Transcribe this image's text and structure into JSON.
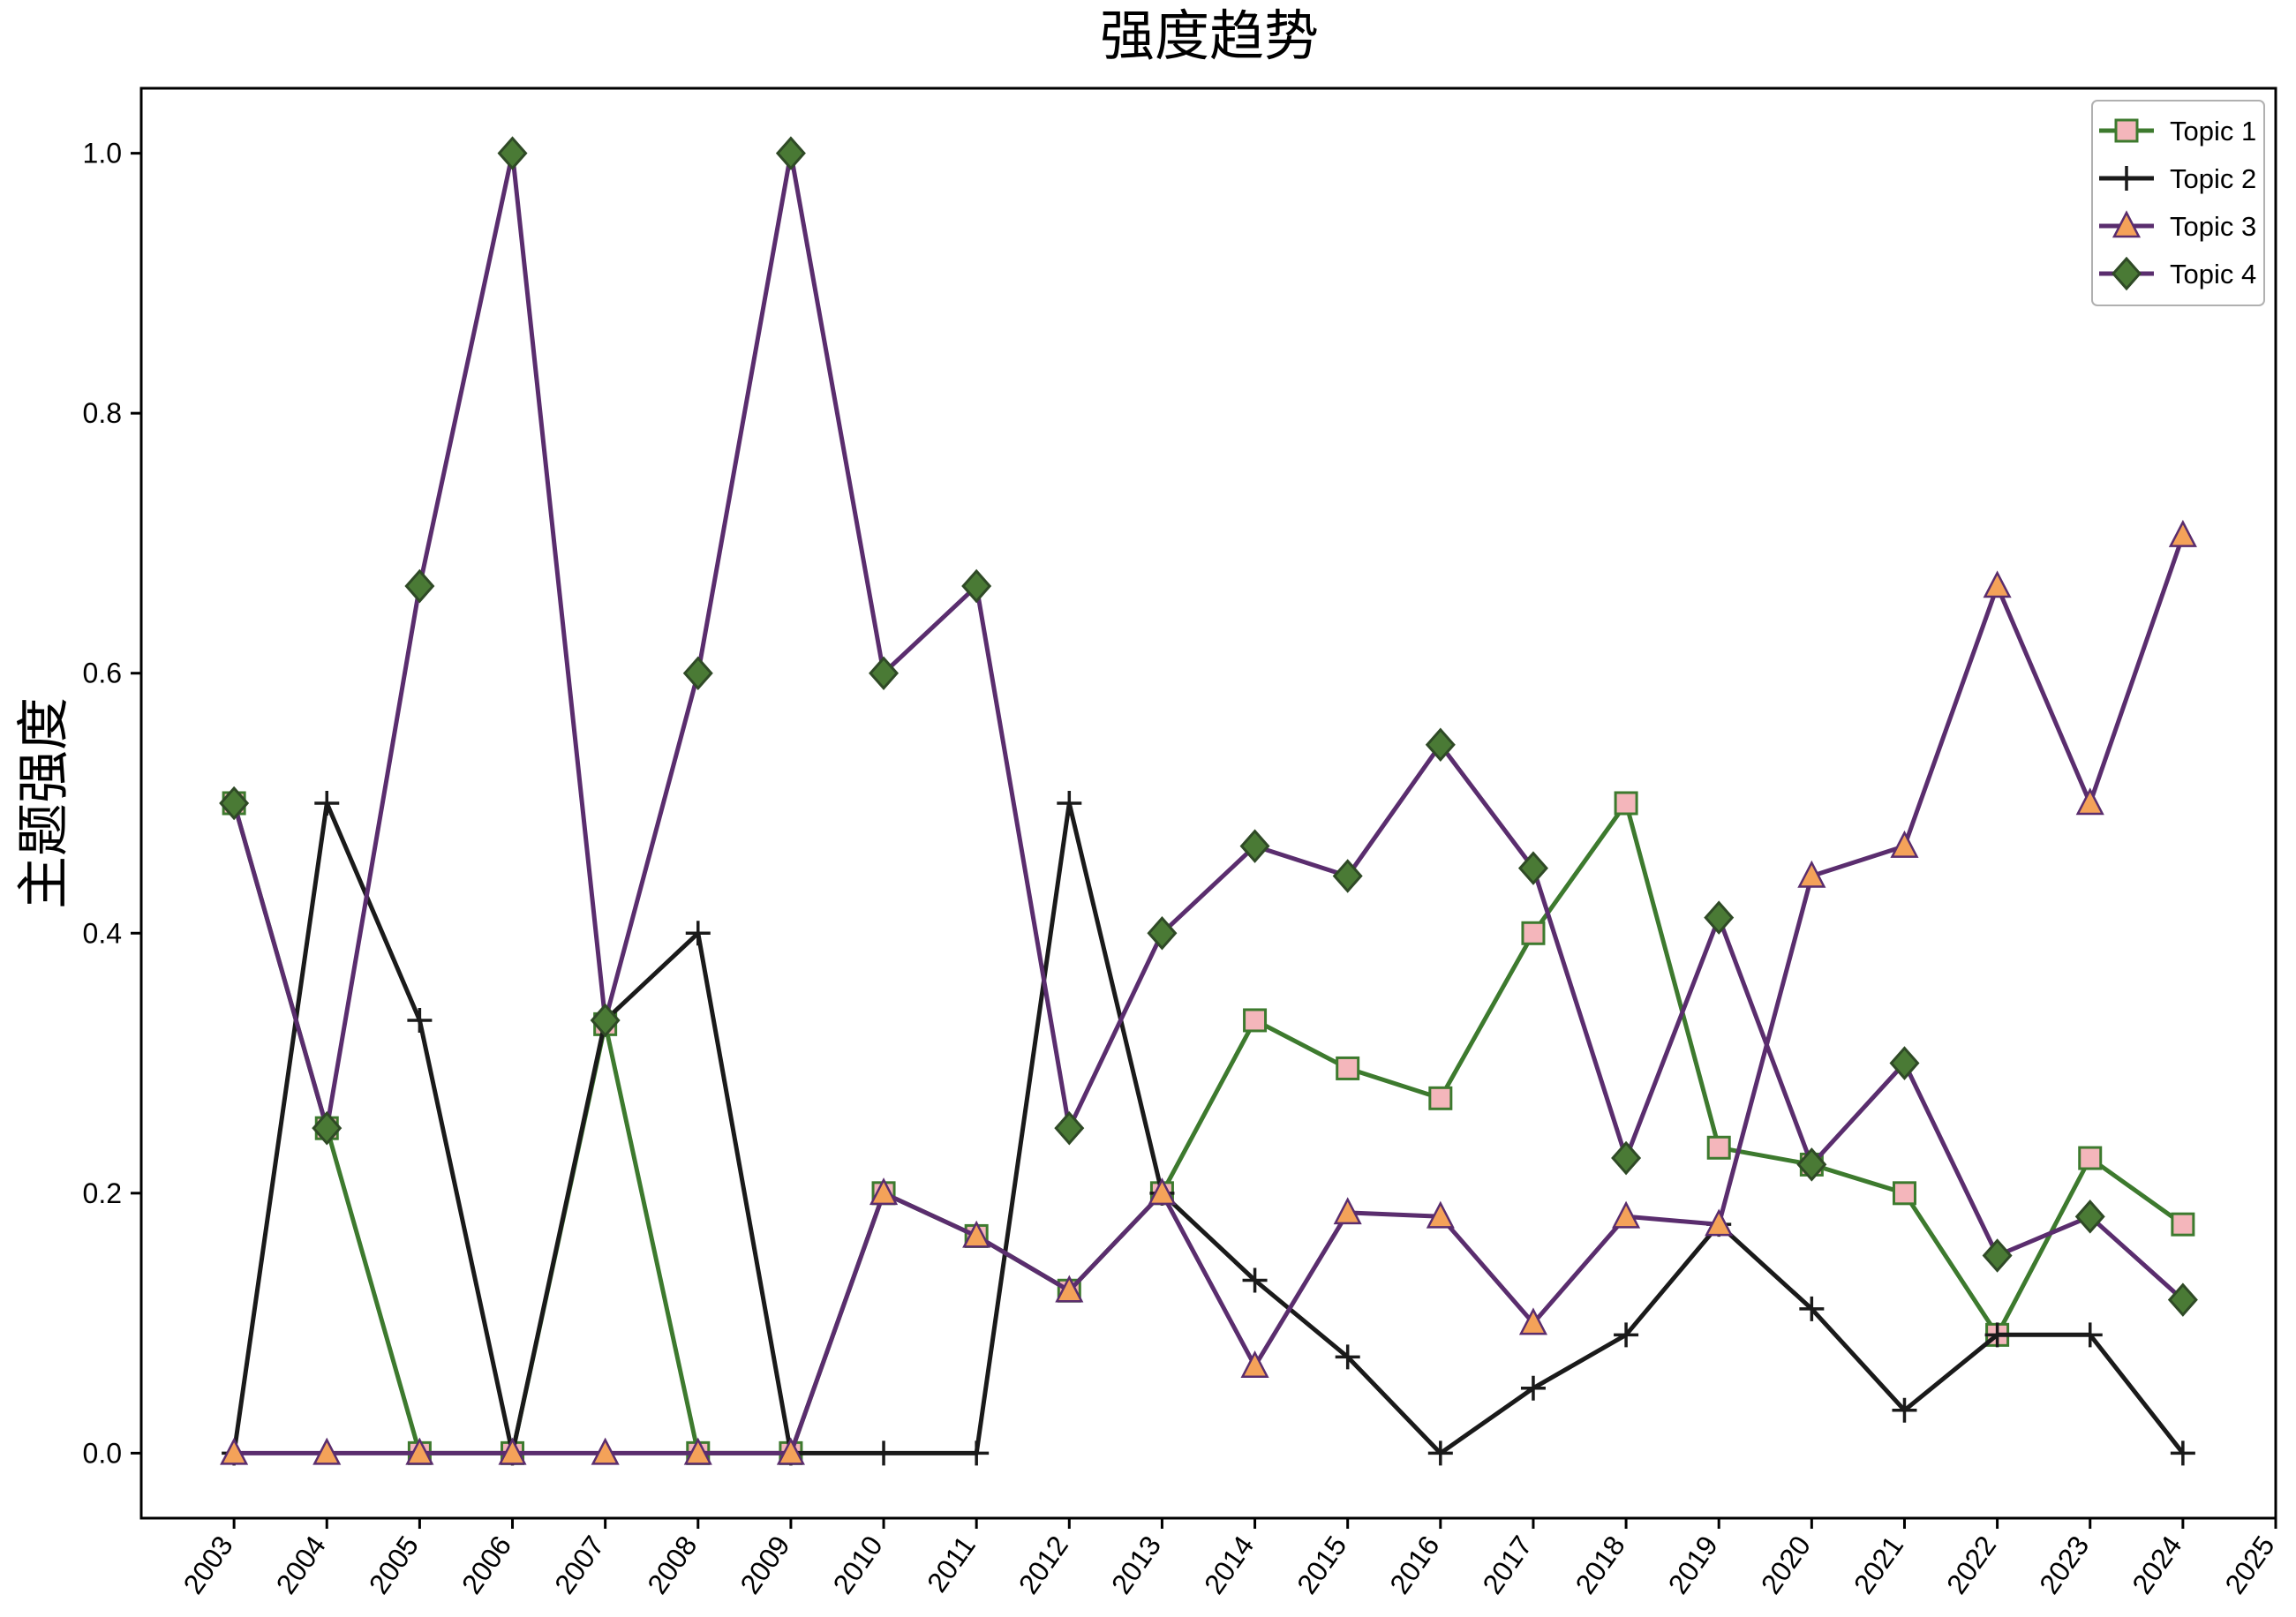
{
  "chart_data": {
    "type": "line",
    "title": "强度趋势",
    "xlabel": "",
    "ylabel": "主题强度",
    "x_ticks": [
      "2003",
      "2004",
      "2005",
      "2006",
      "2007",
      "2008",
      "2009",
      "2010",
      "2011",
      "2012",
      "2013",
      "2014",
      "2015",
      "2016",
      "2017",
      "2018",
      "2019",
      "2020",
      "2021",
      "2022",
      "2023",
      "2024",
      "2025"
    ],
    "y_ticks": [
      "0.0",
      "0.2",
      "0.4",
      "0.6",
      "0.8",
      "1.0"
    ],
    "xlim": [
      2002,
      2025
    ],
    "ylim": [
      -0.05,
      1.05
    ],
    "grid": false,
    "legend_position": "top-right",
    "series": [
      {
        "name": "Topic 1",
        "line_color": "#3d7a2e",
        "marker": "square",
        "marker_fill": "#f4b6bb",
        "marker_edge": "#3d7a2e",
        "x": [
          2003,
          2004,
          2005,
          2006,
          2007,
          2008,
          2009,
          2010,
          2011,
          2012,
          2013,
          2014,
          2015,
          2016,
          2017,
          2018,
          2019,
          2020,
          2021,
          2022,
          2023,
          2024
        ],
        "values": [
          0.5,
          0.25,
          0.0,
          0.0,
          0.33,
          0.0,
          0.0,
          0.2,
          0.167,
          0.125,
          0.2,
          0.333,
          0.296,
          0.273,
          0.4,
          0.5,
          0.235,
          0.222,
          0.2,
          0.091,
          0.227,
          0.176
        ]
      },
      {
        "name": "Topic 2",
        "line_color": "#1a1a1a",
        "marker": "plus",
        "marker_fill": "#1a1a1a",
        "marker_edge": "#1a1a1a",
        "x": [
          2003,
          2004,
          2005,
          2006,
          2007,
          2008,
          2009,
          2010,
          2011,
          2012,
          2013,
          2014,
          2015,
          2016,
          2017,
          2018,
          2019,
          2020,
          2021,
          2022,
          2023,
          2024
        ],
        "values": [
          0.0,
          0.5,
          0.333,
          0.0,
          0.333,
          0.4,
          0.0,
          0.0,
          0.0,
          0.5,
          0.2,
          0.133,
          0.074,
          0.0,
          0.05,
          0.091,
          0.176,
          0.111,
          0.033,
          0.091,
          0.091,
          0.0
        ]
      },
      {
        "name": "Topic 3",
        "line_color": "#5a2d6e",
        "marker": "triangle",
        "marker_fill": "#f4a259",
        "marker_edge": "#5a2d6e",
        "x": [
          2003,
          2004,
          2005,
          2006,
          2007,
          2008,
          2009,
          2010,
          2011,
          2012,
          2013,
          2014,
          2015,
          2016,
          2017,
          2018,
          2019,
          2020,
          2021,
          2022,
          2023,
          2024
        ],
        "values": [
          0.0,
          0.0,
          0.0,
          0.0,
          0.0,
          0.0,
          0.0,
          0.2,
          0.167,
          0.125,
          0.2,
          0.067,
          0.185,
          0.182,
          0.1,
          0.182,
          0.176,
          0.444,
          0.467,
          0.667,
          0.5,
          0.706
        ]
      },
      {
        "name": "Topic 4",
        "line_color": "#5a2d6e",
        "marker": "diamond",
        "marker_fill": "#4a7a35",
        "marker_edge": "#2f4a26",
        "x": [
          2003,
          2004,
          2005,
          2006,
          2007,
          2008,
          2009,
          2010,
          2011,
          2012,
          2013,
          2014,
          2015,
          2016,
          2017,
          2018,
          2019,
          2020,
          2021,
          2022,
          2023,
          2024
        ],
        "values": [
          0.5,
          0.25,
          0.667,
          1.0,
          0.333,
          0.6,
          1.0,
          0.6,
          0.667,
          0.25,
          0.4,
          0.467,
          0.444,
          0.545,
          0.45,
          0.227,
          0.412,
          0.222,
          0.3,
          0.152,
          0.182,
          0.118
        ]
      }
    ]
  }
}
